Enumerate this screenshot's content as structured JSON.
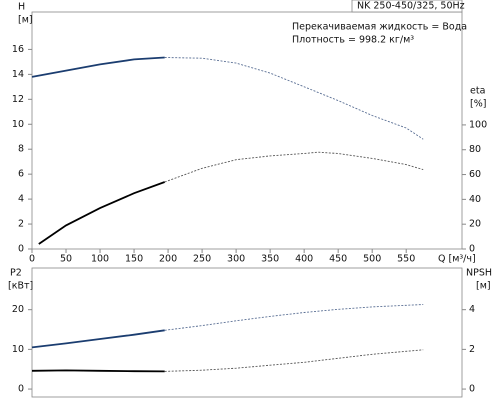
{
  "chart_data": [
    {
      "type": "line",
      "title": "NK 250-450/325, 50Hz",
      "annotations": [
        "Перекачиваемая жидкость = Вода",
        "Плотность = 998.2 кг/м³"
      ],
      "ylabel": "H",
      "yunit": "[м]",
      "y2label": "eta",
      "y2unit": "[%]",
      "xlabel": "Q [м³/ч]",
      "xlim": [
        0,
        632
      ],
      "xticks": [
        0,
        50,
        100,
        150,
        200,
        250,
        300,
        350,
        400,
        450,
        500,
        550
      ],
      "ylim": [
        0,
        19
      ],
      "yticks": [
        0,
        2,
        4,
        6,
        8,
        10,
        12,
        14,
        16
      ],
      "y2lim": [
        0,
        191
      ],
      "y2ticks": [
        0,
        20,
        40,
        60,
        80,
        100
      ],
      "series": [
        {
          "axis": "y",
          "color": "#1b3d70",
          "dash": false,
          "x": [
            0,
            50,
            100,
            150,
            195
          ],
          "values": [
            13.8,
            14.3,
            14.8,
            15.2,
            15.35
          ]
        },
        {
          "axis": "y",
          "color": "#5a6f94",
          "dash": true,
          "x": [
            195,
            250,
            300,
            350,
            400,
            450,
            500,
            550,
            575
          ],
          "values": [
            15.35,
            15.3,
            14.9,
            14.1,
            13.0,
            11.9,
            10.7,
            9.7,
            8.8
          ]
        },
        {
          "axis": "y2",
          "color": "#000000",
          "dash": false,
          "x": [
            10,
            50,
            100,
            150,
            195
          ],
          "values": [
            4,
            19,
            33,
            45,
            54
          ]
        },
        {
          "axis": "y2",
          "color": "#555555",
          "dash": true,
          "x": [
            195,
            250,
            300,
            350,
            400,
            420,
            450,
            500,
            550,
            575
          ],
          "values": [
            54,
            65,
            72,
            75,
            77,
            78,
            77,
            73,
            68,
            64
          ]
        }
      ]
    },
    {
      "type": "line",
      "ylabel": "P2",
      "yunit": "[кВт]",
      "y2label": "NPSH",
      "y2unit": "[м]",
      "xlim": [
        0,
        632
      ],
      "ylim": [
        -2,
        30.5
      ],
      "yticks": [
        0,
        10,
        20
      ],
      "y2lim": [
        -0.4,
        6.1
      ],
      "y2ticks": [
        0,
        2,
        4
      ],
      "series": [
        {
          "axis": "y",
          "color": "#1b3d70",
          "dash": false,
          "x": [
            0,
            50,
            100,
            150,
            195
          ],
          "values": [
            10.5,
            11.5,
            12.6,
            13.7,
            14.8
          ]
        },
        {
          "axis": "y",
          "color": "#5a6f94",
          "dash": true,
          "x": [
            195,
            250,
            300,
            350,
            400,
            450,
            500,
            575
          ],
          "values": [
            14.8,
            16.0,
            17.2,
            18.3,
            19.3,
            20.1,
            20.7,
            21.3
          ]
        },
        {
          "axis": "y2",
          "color": "#000000",
          "dash": false,
          "x": [
            0,
            50,
            100,
            150,
            195
          ],
          "values": [
            0.92,
            0.94,
            0.92,
            0.9,
            0.89
          ]
        },
        {
          "axis": "y2",
          "color": "#555555",
          "dash": true,
          "x": [
            195,
            250,
            300,
            350,
            400,
            450,
            500,
            575
          ],
          "values": [
            0.89,
            0.95,
            1.05,
            1.2,
            1.35,
            1.55,
            1.75,
            1.98
          ]
        }
      ]
    }
  ]
}
